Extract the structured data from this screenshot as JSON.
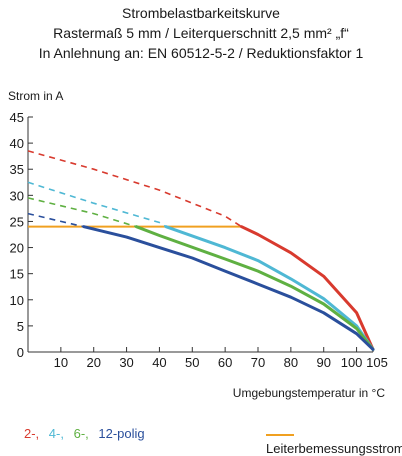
{
  "title_lines": [
    "Strombelastbarkeitskurve",
    "Rastermaß 5 mm / Leiterquerschnitt 2,5 mm² „f“",
    "In Anlehnung an: EN 60512-5-2 / Reduktionsfaktor 1"
  ],
  "legend": {
    "poles": [
      {
        "label": "2-,",
        "color": "#d83a2e"
      },
      {
        "label": "4-,",
        "color": "#4fb8d4"
      },
      {
        "label": "6-,",
        "color": "#5fb042"
      },
      {
        "label": "12-polig",
        "color": "#2a4f9c"
      }
    ],
    "rated_current_label": "Leiterbemessungsstrom",
    "rated_current_color": "#f0a020"
  },
  "chart_data": {
    "type": "line",
    "ylabel": "Strom in A",
    "xlabel": "Umgebungstemperatur in °C",
    "xlim": [
      0,
      105
    ],
    "ylim": [
      0,
      45
    ],
    "xticks": [
      10,
      20,
      30,
      40,
      50,
      60,
      70,
      80,
      90,
      100,
      105
    ],
    "yticks": [
      0,
      5,
      10,
      15,
      20,
      25,
      30,
      35,
      40,
      45
    ],
    "grid": false,
    "rated_current": 24,
    "rated_current_x": [
      0,
      65
    ],
    "series": [
      {
        "name": "2-",
        "color": "#d83a2e",
        "dashed": [
          [
            0,
            38.5
          ],
          [
            20,
            35.0
          ],
          [
            40,
            31.0
          ],
          [
            60,
            26.0
          ],
          [
            65,
            24.0
          ]
        ],
        "solid": [
          [
            65,
            24.0
          ],
          [
            70,
            22.5
          ],
          [
            80,
            19.0
          ],
          [
            90,
            14.5
          ],
          [
            100,
            7.5
          ],
          [
            105,
            0.5
          ]
        ]
      },
      {
        "name": "4-",
        "color": "#4fb8d4",
        "dashed": [
          [
            0,
            32.5
          ],
          [
            20,
            28.5
          ],
          [
            40,
            24.8
          ],
          [
            42,
            24.0
          ]
        ],
        "solid": [
          [
            42,
            24.0
          ],
          [
            60,
            20.0
          ],
          [
            70,
            17.5
          ],
          [
            80,
            14.0
          ],
          [
            90,
            10.2
          ],
          [
            100,
            5.0
          ],
          [
            105,
            0.5
          ]
        ]
      },
      {
        "name": "6-",
        "color": "#5fb042",
        "dashed": [
          [
            0,
            29.5
          ],
          [
            20,
            26.5
          ],
          [
            33,
            24.0
          ]
        ],
        "solid": [
          [
            33,
            24.0
          ],
          [
            40,
            22.3
          ],
          [
            60,
            17.8
          ],
          [
            70,
            15.5
          ],
          [
            80,
            12.6
          ],
          [
            90,
            9.2
          ],
          [
            100,
            4.5
          ],
          [
            105,
            0.5
          ]
        ]
      },
      {
        "name": "12-",
        "color": "#2a4f9c",
        "dashed": [
          [
            0,
            26.5
          ],
          [
            10,
            25.0
          ],
          [
            17,
            24.0
          ]
        ],
        "solid": [
          [
            17,
            24.0
          ],
          [
            30,
            22.0
          ],
          [
            40,
            20.0
          ],
          [
            50,
            18.0
          ],
          [
            60,
            15.5
          ],
          [
            70,
            13.0
          ],
          [
            80,
            10.5
          ],
          [
            90,
            7.5
          ],
          [
            100,
            3.5
          ],
          [
            105,
            0.5
          ]
        ]
      }
    ]
  }
}
